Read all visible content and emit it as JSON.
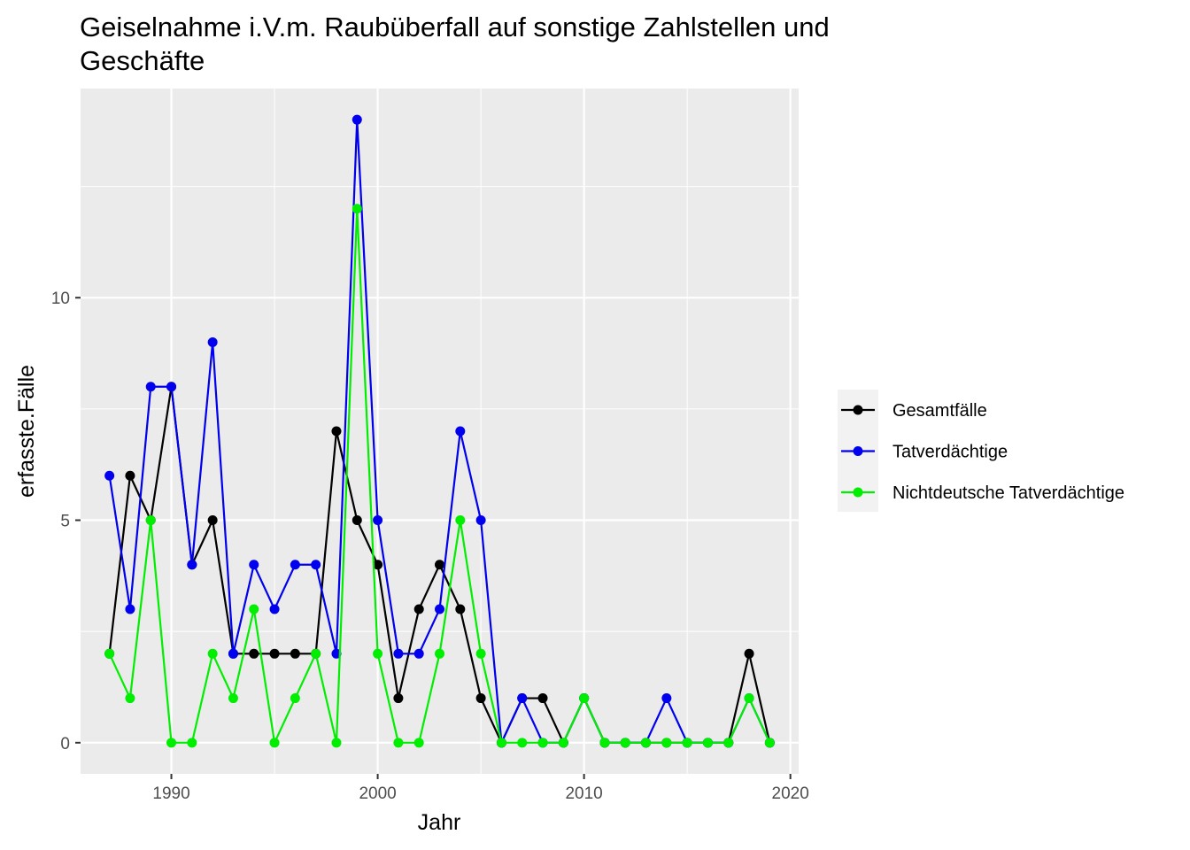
{
  "chart_data": {
    "type": "line",
    "title": "Geiselnahme i.V.m. Raubüberfall auf sonstige Zahlstellen und Geschäfte",
    "title_lines": [
      "Geiselnahme i.V.m. Raubüberfall auf sonstige Zahlstellen und",
      "Geschäfte"
    ],
    "xlabel": "Jahr",
    "ylabel": "erfasste.Fälle",
    "xlim": [
      1985.6,
      2020.4
    ],
    "ylim": [
      -0.7,
      14.7
    ],
    "x_ticks": [
      1990,
      2000,
      2010,
      2020
    ],
    "x_tick_labels": [
      "1990",
      "2000",
      "2010",
      "2020"
    ],
    "y_ticks": [
      0,
      5,
      10
    ],
    "y_tick_labels": [
      "0",
      "5",
      "10"
    ],
    "grid": true,
    "panel_background": "#ebebeb",
    "legend_position": "right",
    "x": [
      1987,
      1988,
      1989,
      1990,
      1991,
      1992,
      1993,
      1994,
      1995,
      1996,
      1997,
      1998,
      1999,
      2000,
      2001,
      2002,
      2003,
      2004,
      2005,
      2006,
      2007,
      2008,
      2009,
      2010,
      2011,
      2012,
      2013,
      2014,
      2015,
      2016,
      2017,
      2018,
      2019
    ],
    "series": [
      {
        "name": "Gesamtfälle",
        "color": "#000000",
        "values": [
          2,
          6,
          5,
          8,
          4,
          5,
          2,
          2,
          2,
          2,
          2,
          7,
          5,
          4,
          1,
          3,
          4,
          3,
          1,
          0,
          1,
          1,
          0,
          1,
          0,
          0,
          0,
          0,
          0,
          0,
          0,
          2,
          0
        ]
      },
      {
        "name": "Tatverdächtige",
        "color": "#0000ee",
        "values": [
          6,
          3,
          8,
          8,
          4,
          9,
          2,
          4,
          3,
          4,
          4,
          2,
          14,
          5,
          2,
          2,
          3,
          7,
          5,
          0,
          1,
          0,
          0,
          1,
          0,
          0,
          0,
          1,
          0,
          0,
          0,
          1,
          0
        ]
      },
      {
        "name": "Nichtdeutsche Tatverdächtige",
        "color": "#00ee00",
        "values": [
          2,
          1,
          5,
          0,
          0,
          2,
          1,
          3,
          0,
          1,
          2,
          0,
          12,
          2,
          0,
          0,
          2,
          5,
          2,
          0,
          0,
          0,
          0,
          1,
          0,
          0,
          0,
          0,
          0,
          0,
          0,
          1,
          0
        ]
      }
    ]
  }
}
